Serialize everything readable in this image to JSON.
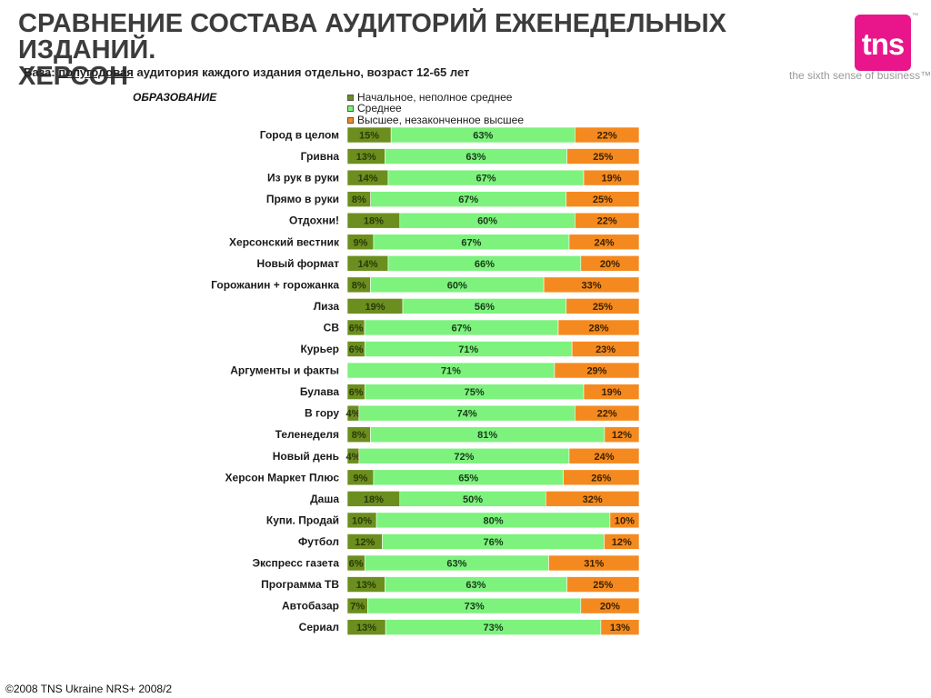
{
  "header": {
    "title_line1": "СРАВНЕНИЕ СОСТАВА АУДИТОРИЙ ЕЖЕНЕДЕЛЬНЫХ ИЗДАНИЙ.",
    "title_line2": "ХЕРСОН",
    "base_prefix": "База:",
    "base_underlined": "полугодовая",
    "base_rest": "аудитория каждого издания отдельно, возраст 12-65 лет",
    "section": "ОБРАЗОВАНИЕ"
  },
  "brand": {
    "logo_text": "tns",
    "tm": "™",
    "tagline": "the sixth sense of business™",
    "color": "#e8168a"
  },
  "footer": {
    "text": "©2008 TNS Ukraine  NRS+ 2008/2"
  },
  "colors": {
    "primary": "#6b8e1e",
    "secondary": "#7df27d",
    "higher": "#f48a1f"
  },
  "chart_data": {
    "type": "bar",
    "orientation": "horizontal",
    "stacked": "100%",
    "categories": [
      "Город в целом",
      "Гривна",
      "Из рук в руки",
      "Прямо в руки",
      "Отдохни!",
      "Херсонский вестник",
      "Новый формат",
      "Горожанин + горожанка",
      "Лиза",
      "СВ",
      "Курьер",
      "Аргументы и факты",
      "Булава",
      "В гору",
      "Теленеделя",
      "Новый день",
      "Херсон Маркет Плюс",
      "Даша",
      "Купи. Продай",
      "Футбол",
      "Экспресс газета",
      "Программа ТВ",
      "Автобазар",
      "Сериал"
    ],
    "series": [
      {
        "name": "Начальное, неполное среднее",
        "color": "#6b8e1e",
        "values": [
          15,
          13,
          14,
          8,
          18,
          9,
          14,
          8,
          19,
          6,
          6,
          null,
          6,
          4,
          8,
          4,
          9,
          18,
          10,
          12,
          6,
          13,
          7,
          13
        ]
      },
      {
        "name": "Среднее",
        "color": "#7df27d",
        "values": [
          63,
          63,
          67,
          67,
          60,
          67,
          66,
          60,
          56,
          67,
          71,
          71,
          75,
          74,
          81,
          72,
          65,
          50,
          80,
          76,
          63,
          63,
          73,
          73
        ]
      },
      {
        "name": "Высшее, незаконченное высшее",
        "color": "#f48a1f",
        "values": [
          22,
          25,
          19,
          25,
          22,
          24,
          20,
          33,
          25,
          28,
          23,
          29,
          19,
          22,
          12,
          24,
          26,
          32,
          10,
          12,
          31,
          25,
          20,
          13
        ]
      }
    ],
    "value_suffix": "%",
    "xlim": [
      0,
      100
    ],
    "legend": "top",
    "grid": false
  }
}
